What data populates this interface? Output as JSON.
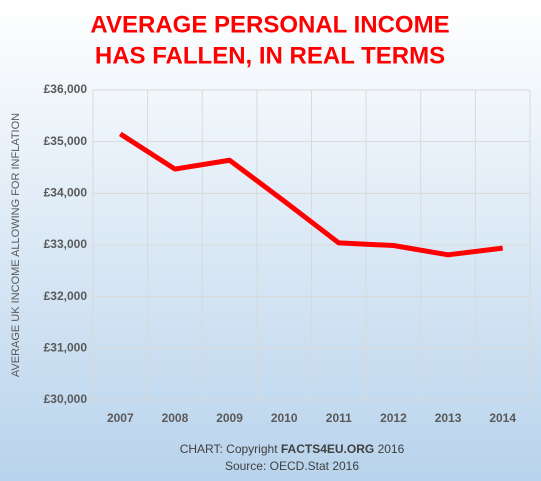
{
  "chart_data": {
    "type": "line",
    "title_lines": [
      "AVERAGE PERSONAL INCOME",
      "HAS FALLEN, IN REAL TERMS"
    ],
    "y_label": "AVERAGE UK INCOME ALLOWING FOR INFLATION",
    "categories": [
      "2007",
      "2008",
      "2009",
      "2010",
      "2011",
      "2012",
      "2013",
      "2014"
    ],
    "values": [
      35150,
      34470,
      34640,
      33850,
      33040,
      32990,
      32810,
      32940
    ],
    "color": "#ff0000",
    "ylim": [
      30000,
      36000
    ],
    "yticks": [
      {
        "value": 30000,
        "label": "£30,000"
      },
      {
        "value": 31000,
        "label": "£31,000"
      },
      {
        "value": 32000,
        "label": "£32,000"
      },
      {
        "value": 33000,
        "label": "£33,000"
      },
      {
        "value": 34000,
        "label": "£34,000"
      },
      {
        "value": 35000,
        "label": "£35,000"
      },
      {
        "value": 36000,
        "label": "£36,000"
      }
    ],
    "grid": true,
    "credit": {
      "prefix": "CHART: Copyright ",
      "site": "FACTS4EU.ORG",
      "suffix": " 2016"
    },
    "source": "Source: OECD.Stat 2016"
  }
}
